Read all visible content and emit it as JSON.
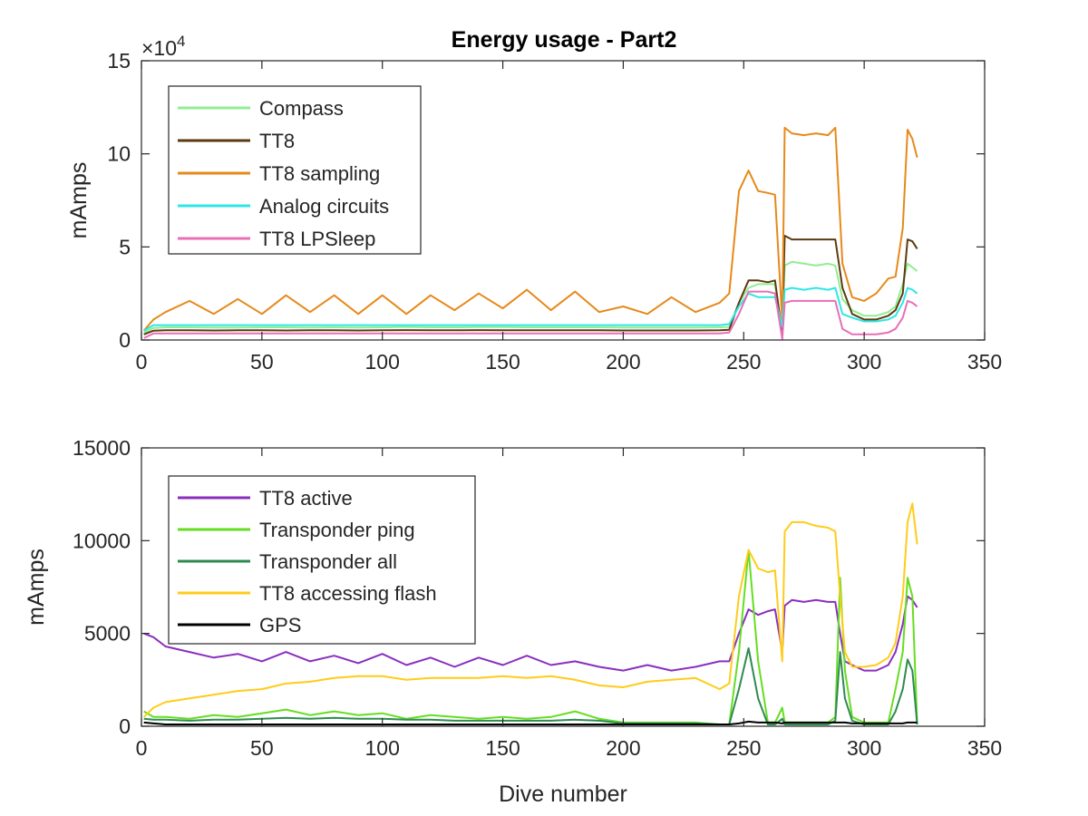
{
  "figure": {
    "title": "Energy usage - Part2",
    "background": "#ffffff"
  },
  "chart_data": [
    {
      "type": "line",
      "title": "Energy usage - Part2",
      "xlabel": "",
      "ylabel": "mAmps",
      "xlim": [
        0,
        350
      ],
      "ylim": [
        0,
        150000
      ],
      "x_ticks": [
        0,
        50,
        100,
        150,
        200,
        250,
        300,
        350
      ],
      "x_tick_labels": [
        "0",
        "50",
        "100",
        "150",
        "200",
        "250",
        "300",
        "350"
      ],
      "y_ticks": [
        0,
        50000,
        100000,
        150000
      ],
      "y_tick_labels": [
        "0",
        "5",
        "10",
        "15"
      ],
      "y_exponent_label": "×10",
      "y_exponent_power": "4",
      "grid": false,
      "legend_position": "top-left",
      "x": [
        1,
        5,
        10,
        20,
        30,
        40,
        50,
        60,
        70,
        80,
        90,
        100,
        110,
        120,
        130,
        140,
        150,
        160,
        170,
        180,
        190,
        200,
        210,
        220,
        230,
        240,
        244,
        248,
        252,
        256,
        260,
        263,
        266,
        267,
        270,
        275,
        280,
        285,
        288,
        291,
        295,
        300,
        305,
        310,
        313,
        316,
        318,
        320,
        322
      ],
      "series": [
        {
          "name": "Compass",
          "color": "#90ee90",
          "values": [
            4000,
            6500,
            6800,
            6800,
            6700,
            6700,
            6800,
            6800,
            6700,
            6800,
            6700,
            6800,
            7000,
            6800,
            6800,
            6900,
            6900,
            6800,
            6800,
            6800,
            6800,
            6700,
            6700,
            6700,
            6700,
            6800,
            7000,
            20000,
            28000,
            30000,
            30000,
            30000,
            4000,
            40000,
            42000,
            41000,
            40000,
            41000,
            40000,
            22000,
            16000,
            13000,
            13000,
            15000,
            18000,
            30000,
            41000,
            39000,
            37000
          ]
        },
        {
          "name": "TT8",
          "color": "#5c3a10",
          "values": [
            3000,
            5000,
            5200,
            5200,
            5100,
            5200,
            5200,
            5100,
            5200,
            5200,
            5100,
            5200,
            5300,
            5200,
            5200,
            5300,
            5200,
            5200,
            5200,
            5200,
            5200,
            5100,
            5100,
            5100,
            5100,
            5200,
            5500,
            20000,
            32000,
            32000,
            31000,
            32000,
            3000,
            56000,
            54000,
            54000,
            54000,
            54000,
            54000,
            28000,
            14000,
            11000,
            11000,
            13000,
            16000,
            25000,
            54000,
            53000,
            49000
          ]
        },
        {
          "name": "TT8 sampling",
          "color": "#e6891a",
          "values": [
            5000,
            11000,
            15000,
            21000,
            14000,
            22000,
            14000,
            24000,
            15000,
            24000,
            14000,
            24000,
            14000,
            24000,
            16000,
            25000,
            17000,
            27000,
            16000,
            26000,
            15000,
            18000,
            14000,
            23000,
            15000,
            20000,
            25000,
            80000,
            91000,
            80000,
            79000,
            78000,
            10000,
            114000,
            111000,
            110000,
            111000,
            110000,
            114000,
            41000,
            23000,
            21000,
            25000,
            33000,
            34000,
            60000,
            113000,
            108000,
            98000
          ]
        },
        {
          "name": "Analog circuits",
          "color": "#2fe6e6",
          "values": [
            5000,
            8000,
            8000,
            8000,
            8000,
            8000,
            8000,
            8000,
            8000,
            8000,
            8000,
            8000,
            8000,
            8000,
            8000,
            8000,
            8000,
            8000,
            8000,
            8000,
            8000,
            8000,
            8000,
            8000,
            8000,
            8000,
            8500,
            18000,
            25000,
            23000,
            23000,
            23000,
            7000,
            27000,
            28000,
            27000,
            28000,
            27000,
            28000,
            14000,
            12000,
            10000,
            10000,
            11000,
            13000,
            20000,
            28000,
            27000,
            25000
          ]
        },
        {
          "name": "TT8 LPSleep",
          "color": "#e86fb6",
          "values": [
            1000,
            3500,
            3500,
            3500,
            3500,
            3500,
            3500,
            3500,
            3500,
            3500,
            3500,
            3500,
            3500,
            3500,
            3500,
            3500,
            3500,
            3500,
            3500,
            3500,
            3500,
            3500,
            3500,
            3500,
            3500,
            3500,
            4000,
            14000,
            26000,
            26000,
            26000,
            25000,
            500,
            20000,
            21000,
            21000,
            21000,
            21000,
            21000,
            6000,
            3000,
            3000,
            3000,
            4000,
            6000,
            12000,
            21000,
            20000,
            18000
          ]
        }
      ]
    },
    {
      "type": "line",
      "title": "",
      "xlabel": "Dive number",
      "ylabel": "mAmps",
      "xlim": [
        0,
        350
      ],
      "ylim": [
        0,
        15000
      ],
      "x_ticks": [
        0,
        50,
        100,
        150,
        200,
        250,
        300,
        350
      ],
      "x_tick_labels": [
        "0",
        "50",
        "100",
        "150",
        "200",
        "250",
        "300",
        "350"
      ],
      "y_ticks": [
        0,
        5000,
        10000,
        15000
      ],
      "y_tick_labels": [
        "0",
        "5000",
        "10000",
        "15000"
      ],
      "grid": false,
      "legend_position": "top-left",
      "x": [
        1,
        5,
        10,
        20,
        30,
        40,
        50,
        60,
        70,
        80,
        90,
        100,
        110,
        120,
        130,
        140,
        150,
        160,
        170,
        180,
        190,
        200,
        210,
        220,
        230,
        240,
        244,
        248,
        252,
        256,
        260,
        263,
        266,
        267,
        270,
        275,
        280,
        285,
        288,
        290,
        292,
        295,
        300,
        305,
        310,
        313,
        316,
        318,
        320,
        322
      ],
      "series": [
        {
          "name": "TT8 active",
          "color": "#8a2fbe",
          "values": [
            5000,
            4800,
            4300,
            4000,
            3700,
            3900,
            3500,
            4000,
            3500,
            3800,
            3400,
            3900,
            3300,
            3700,
            3200,
            3700,
            3300,
            3800,
            3300,
            3500,
            3200,
            3000,
            3300,
            3000,
            3200,
            3500,
            3500,
            5000,
            6300,
            6000,
            6200,
            6300,
            4000,
            6500,
            6800,
            6700,
            6800,
            6700,
            6700,
            5000,
            3500,
            3300,
            3000,
            3000,
            3300,
            4000,
            5500,
            7000,
            6800,
            6400
          ]
        },
        {
          "name": "Transponder ping",
          "color": "#66dd22",
          "values": [
            800,
            500,
            500,
            400,
            600,
            500,
            700,
            900,
            600,
            800,
            600,
            700,
            400,
            600,
            500,
            400,
            500,
            400,
            500,
            800,
            400,
            200,
            200,
            200,
            200,
            100,
            100,
            4000,
            9500,
            3500,
            200,
            200,
            1000,
            200,
            200,
            200,
            200,
            200,
            500,
            8000,
            3000,
            500,
            200,
            200,
            200,
            2000,
            4000,
            8000,
            7000,
            100
          ]
        },
        {
          "name": "Transponder all",
          "color": "#2e8b4f",
          "values": [
            400,
            350,
            350,
            300,
            350,
            350,
            400,
            450,
            400,
            450,
            400,
            400,
            350,
            350,
            300,
            300,
            300,
            300,
            300,
            350,
            300,
            150,
            150,
            150,
            150,
            100,
            100,
            2000,
            4200,
            1500,
            100,
            100,
            400,
            100,
            100,
            100,
            100,
            100,
            300,
            4000,
            1500,
            300,
            100,
            100,
            100,
            800,
            2000,
            3600,
            3000,
            100
          ]
        },
        {
          "name": "TT8 accessing flash",
          "color": "#ffcc1a",
          "values": [
            500,
            1000,
            1300,
            1500,
            1700,
            1900,
            2000,
            2300,
            2400,
            2600,
            2700,
            2700,
            2500,
            2600,
            2600,
            2600,
            2700,
            2600,
            2700,
            2500,
            2200,
            2100,
            2400,
            2500,
            2600,
            2000,
            2300,
            7000,
            9500,
            8500,
            8300,
            8400,
            3500,
            10500,
            11000,
            11000,
            10800,
            10700,
            10500,
            7000,
            4000,
            3200,
            3200,
            3300,
            3700,
            4500,
            7000,
            11000,
            12000,
            9800
          ]
        },
        {
          "name": "GPS",
          "color": "#000000",
          "values": [
            200,
            150,
            100,
            100,
            100,
            100,
            100,
            100,
            100,
            100,
            100,
            100,
            100,
            100,
            100,
            100,
            100,
            100,
            100,
            100,
            100,
            100,
            100,
            100,
            100,
            100,
            100,
            150,
            250,
            200,
            200,
            200,
            150,
            200,
            200,
            200,
            200,
            200,
            200,
            200,
            200,
            150,
            150,
            150,
            150,
            150,
            150,
            200,
            200,
            200
          ]
        }
      ]
    }
  ]
}
